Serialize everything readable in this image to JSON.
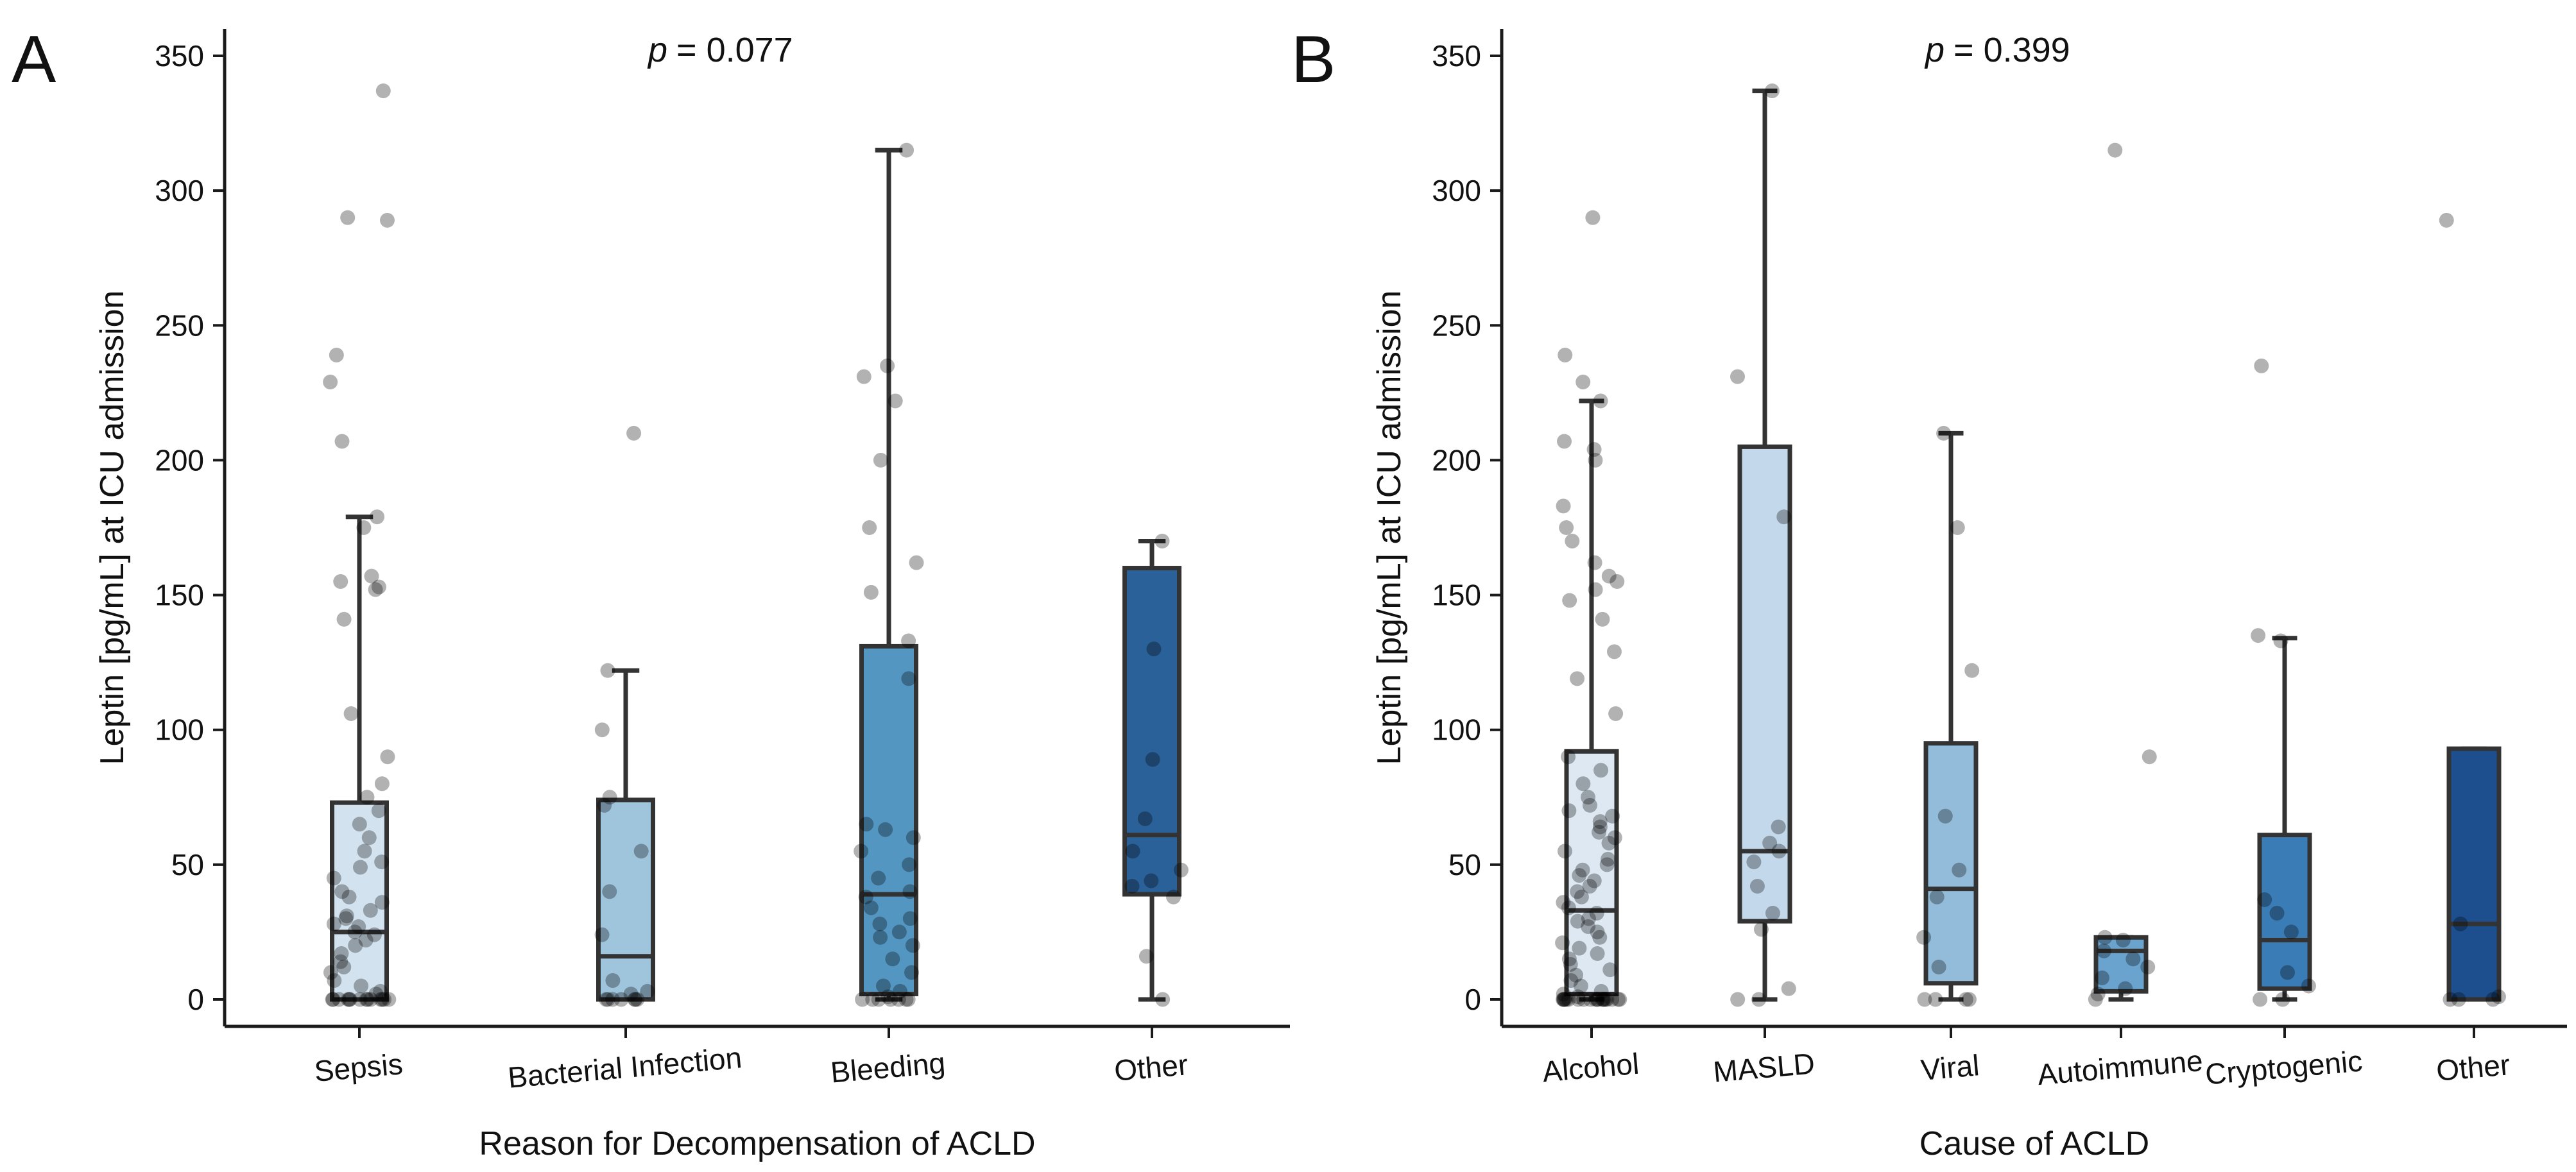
{
  "figure": {
    "panels": [
      {
        "letter": "A",
        "p_label": "p",
        "p_value": "= 0.077",
        "xlabel": "Reason for Decompensation of ACLD",
        "ylabel": "Leptin [pg/mL] at ICU admission"
      },
      {
        "letter": "B",
        "p_label": "p",
        "p_value": "= 0.399",
        "xlabel": "Cause of ACLD",
        "ylabel": "Leptin [pg/mL] at ICU admission"
      }
    ]
  },
  "chart_data": [
    {
      "type": "box",
      "panel": "A",
      "title": "p = 0.077",
      "xlabel": "Reason for Decompensation of ACLD",
      "ylabel": "Leptin [pg/mL] at ICU admission",
      "ylim": [
        -10,
        360
      ],
      "yticks": [
        0,
        50,
        100,
        150,
        200,
        250,
        300,
        350
      ],
      "categories": [
        "Sepsis",
        "Bacterial Infection",
        "Bleeding",
        "Other"
      ],
      "colors": [
        "#d3e2ef",
        "#9fc5dd",
        "#5496c2",
        "#2a6199"
      ],
      "boxes": [
        {
          "whislo": 0,
          "q1": 0,
          "med": 25,
          "q3": 73,
          "whishi": 179
        },
        {
          "whislo": 0,
          "q1": 0,
          "med": 16,
          "q3": 74,
          "whishi": 122
        },
        {
          "whislo": 0,
          "q1": 2,
          "med": 39,
          "q3": 131,
          "whishi": 315
        },
        {
          "whislo": 0,
          "q1": 39,
          "med": 61,
          "q3": 160,
          "whishi": 170
        }
      ],
      "points": [
        [
          0,
          0,
          0,
          0,
          0,
          0,
          0,
          0,
          0,
          0,
          0,
          0,
          0,
          0,
          2,
          3,
          5,
          7,
          10,
          12,
          14,
          17,
          20,
          22,
          24,
          25,
          27,
          28,
          30,
          31,
          33,
          36,
          38,
          40,
          45,
          49,
          51,
          55,
          60,
          65,
          70,
          75,
          80,
          90,
          106,
          141,
          152,
          153,
          155,
          157,
          175,
          179,
          207,
          229,
          239,
          289,
          290,
          337
        ],
        [
          0,
          0,
          0,
          0,
          0,
          0,
          0,
          2,
          3,
          7,
          24,
          40,
          55,
          72,
          75,
          100,
          122,
          210
        ],
        [
          0,
          0,
          0,
          0,
          0,
          0,
          0,
          1,
          3,
          5,
          10,
          15,
          20,
          23,
          25,
          28,
          30,
          34,
          38,
          40,
          45,
          50,
          55,
          60,
          63,
          65,
          119,
          133,
          151,
          162,
          175,
          200,
          222,
          231,
          235,
          315
        ],
        [
          0,
          16,
          38,
          42,
          44,
          48,
          55,
          67,
          89,
          130,
          170
        ]
      ]
    },
    {
      "type": "box",
      "panel": "B",
      "title": "p = 0.399",
      "xlabel": "Cause of ACLD",
      "ylabel": "Leptin [pg/mL] at ICU admission",
      "ylim": [
        -10,
        360
      ],
      "yticks": [
        0,
        50,
        100,
        150,
        200,
        250,
        300,
        350
      ],
      "categories": [
        "Alcohol",
        "MASLD",
        "Viral",
        "Autoimmune",
        "Cryptogenic",
        "Other"
      ],
      "colors": [
        "#dde8f2",
        "#c3d8ea",
        "#92bcd9",
        "#6aa3cd",
        "#3a7cb5",
        "#1d4f8f"
      ],
      "boxes": [
        {
          "whislo": 0,
          "q1": 2,
          "med": 33,
          "q3": 92,
          "whishi": 222
        },
        {
          "whislo": 0,
          "q1": 29,
          "med": 55,
          "q3": 205,
          "whishi": 337
        },
        {
          "whislo": 0,
          "q1": 6,
          "med": 41,
          "q3": 95,
          "whishi": 210
        },
        {
          "whislo": 0,
          "q1": 3,
          "med": 18,
          "q3": 23,
          "whishi": 23
        },
        {
          "whislo": 0,
          "q1": 4,
          "med": 22,
          "q3": 61,
          "whishi": 134
        },
        {
          "whislo": 0,
          "q1": 0,
          "med": 28,
          "q3": 93,
          "whishi": 93
        }
      ],
      "points": [
        [
          0,
          0,
          0,
          0,
          0,
          0,
          0,
          0,
          0,
          0,
          0,
          0,
          0,
          0,
          0,
          0,
          0,
          0,
          0,
          0,
          1,
          2,
          3,
          5,
          7,
          9,
          11,
          13,
          15,
          17,
          19,
          21,
          23,
          25,
          27,
          29,
          30,
          32,
          34,
          36,
          38,
          40,
          42,
          44,
          46,
          48,
          50,
          52,
          55,
          58,
          60,
          62,
          64,
          66,
          68,
          70,
          72,
          75,
          80,
          85,
          90,
          106,
          119,
          129,
          141,
          148,
          152,
          155,
          157,
          162,
          170,
          175,
          183,
          200,
          204,
          207,
          222,
          229,
          239,
          290
        ],
        [
          0,
          0,
          4,
          26,
          32,
          42,
          51,
          55,
          58,
          64,
          179,
          231,
          337
        ],
        [
          0,
          0,
          0,
          0,
          12,
          23,
          38,
          48,
          68,
          122,
          175,
          210
        ],
        [
          0,
          2,
          4,
          8,
          12,
          15,
          18,
          22,
          23,
          90,
          315
        ],
        [
          0,
          0,
          5,
          10,
          25,
          32,
          37,
          133,
          135,
          235
        ],
        [
          0,
          0,
          0,
          1,
          28,
          289
        ]
      ]
    }
  ]
}
